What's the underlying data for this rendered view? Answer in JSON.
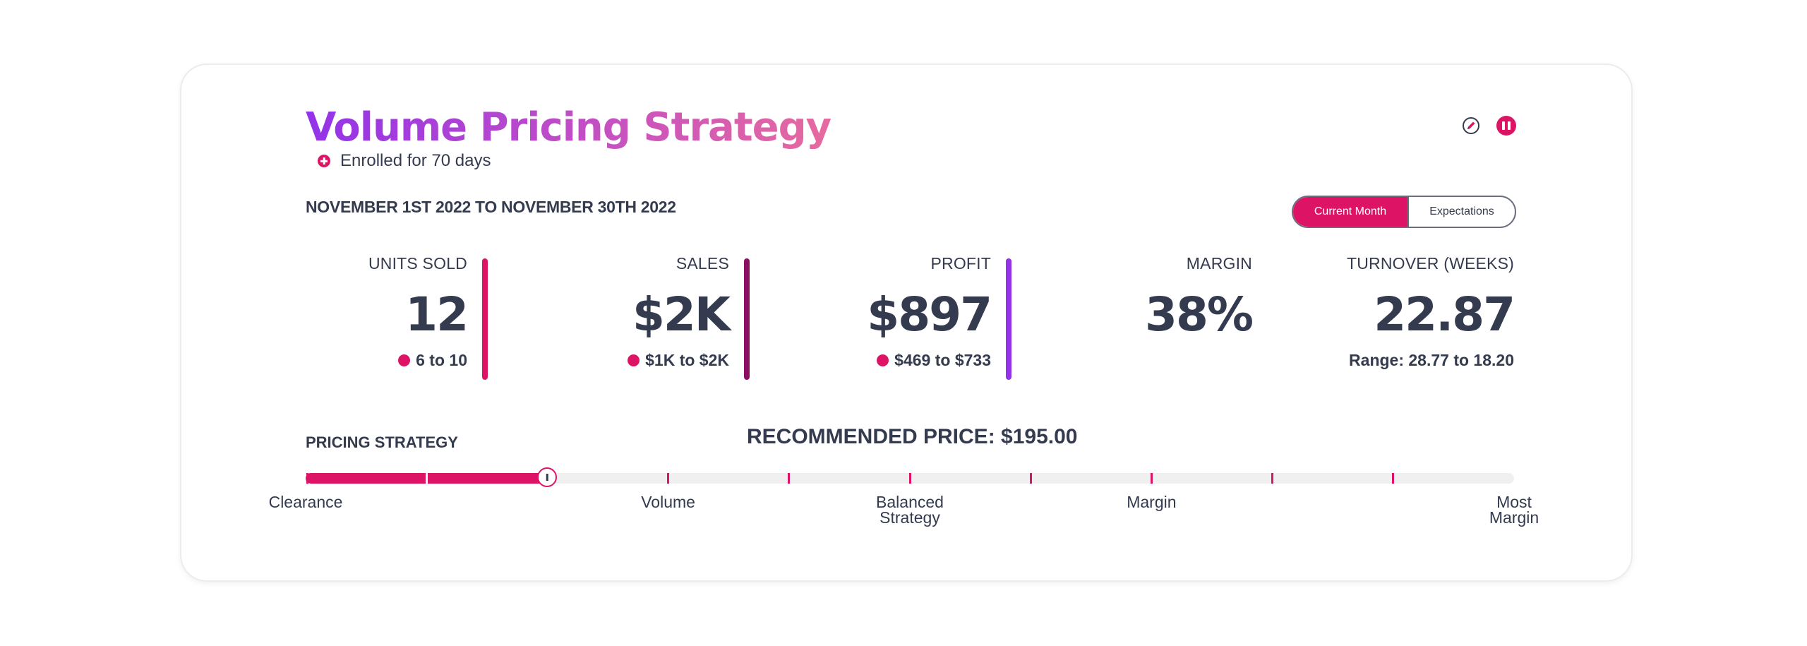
{
  "header": {
    "title": "Volume Pricing Strategy",
    "enrolled": "Enrolled for 70 days",
    "date_range": "NOVEMBER 1ST 2022 TO NOVEMBER 30TH 2022",
    "icons": [
      "edit-icon",
      "pause-icon"
    ]
  },
  "toggle": {
    "current_label": "Current Month",
    "expectations_label": "Expectations",
    "selected": "Current Month"
  },
  "metrics": {
    "units_sold": {
      "label": "UNITS SOLD",
      "value": "12",
      "range": "6 to 10"
    },
    "sales": {
      "label": "SALES",
      "value": "$2K",
      "range": "$1K to $2K"
    },
    "profit": {
      "label": "PROFIT",
      "value": "$897",
      "range": "$469 to $733"
    },
    "margin": {
      "label": "MARGIN",
      "value": "38%"
    },
    "turnover": {
      "label": "TURNOVER (WEEKS)",
      "value": "22.87",
      "range": "Range: 28.77 to 18.20"
    }
  },
  "pricing": {
    "label": "PRICING STRATEGY",
    "recommended": "RECOMMENDED PRICE: $195.00",
    "slider_level": 0.2,
    "stops": [
      {
        "label": "Clearance",
        "position": 0
      },
      {
        "label": "Volume",
        "position": 0.3
      },
      {
        "label": "Balanced\nStrategy",
        "position": 0.5
      },
      {
        "label": "Margin",
        "position": 0.7
      },
      {
        "label": "Most\nMargin",
        "position": 1
      }
    ]
  },
  "colors": {
    "accent": "#dd1466",
    "sales_bar": "#8a0f63",
    "profit_bar": "#9333ea",
    "text": "#343b4f"
  }
}
